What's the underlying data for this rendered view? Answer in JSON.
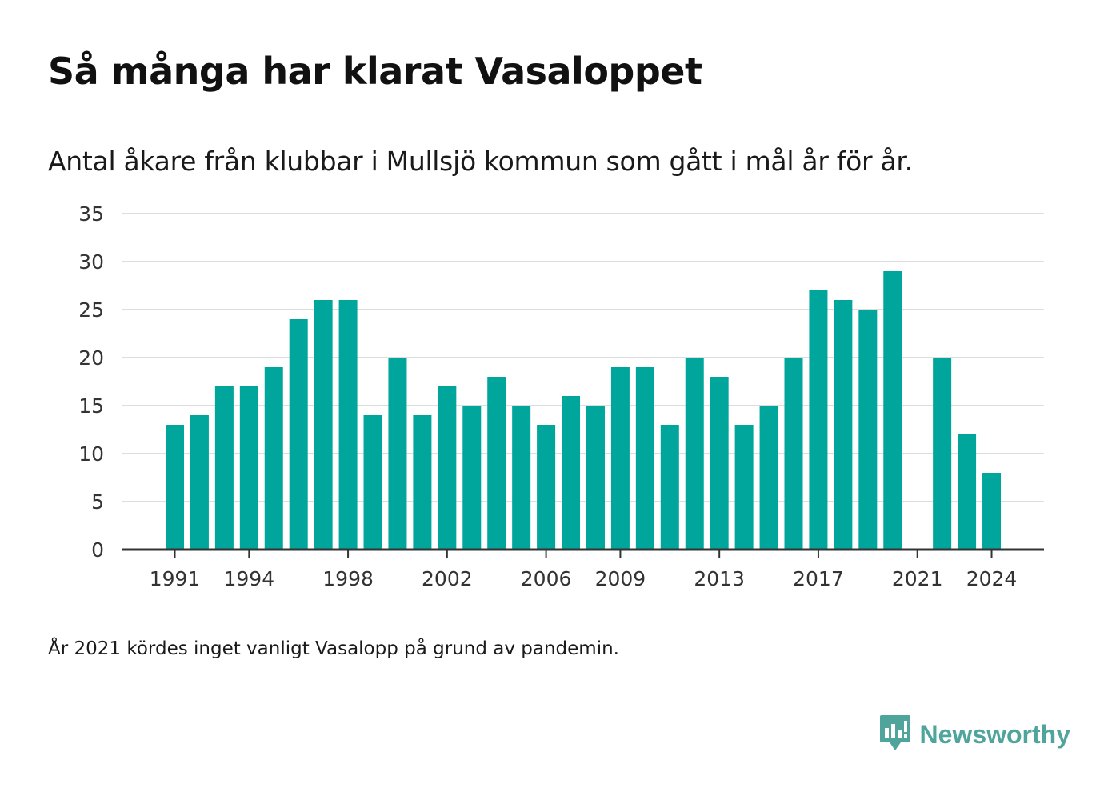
{
  "title": "Så många har klarat Vasaloppet",
  "subtitle": "Antal åkare från klubbar i Mullsjö kommun som gått i mål år för år.",
  "note": "År 2021 kördes inget vanligt Vasalopp på grund av pandemin.",
  "brand": {
    "name": "Newsworthy",
    "icon": "newsworthy-logo-icon",
    "color": "#4fa49b"
  },
  "colors": {
    "bar": "#00a69c",
    "grid": "#dddddd",
    "axis": "#333333"
  },
  "chart_data": {
    "type": "bar",
    "x": [
      1991,
      1992,
      1993,
      1994,
      1995,
      1996,
      1997,
      1998,
      1999,
      2000,
      2001,
      2002,
      2003,
      2004,
      2005,
      2006,
      2007,
      2008,
      2009,
      2010,
      2011,
      2012,
      2013,
      2014,
      2015,
      2016,
      2017,
      2018,
      2019,
      2020,
      2021,
      2022,
      2023,
      2024
    ],
    "values": [
      13,
      14,
      17,
      17,
      19,
      24,
      26,
      26,
      14,
      20,
      14,
      17,
      15,
      18,
      15,
      13,
      16,
      15,
      19,
      19,
      13,
      20,
      18,
      13,
      15,
      20,
      27,
      26,
      25,
      29,
      null,
      20,
      12,
      8
    ],
    "xticks": [
      "1991",
      "1994",
      "1998",
      "2002",
      "2006",
      "2009",
      "2013",
      "2017",
      "2021",
      "2024"
    ],
    "yticks": [
      "0",
      "5",
      "10",
      "15",
      "20",
      "25",
      "30",
      "35"
    ],
    "ylim": [
      0,
      35
    ],
    "xlim": [
      1990,
      2026
    ],
    "grid": true,
    "legend": "none"
  }
}
